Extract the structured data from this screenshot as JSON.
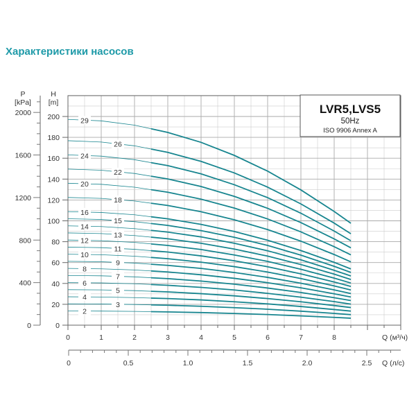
{
  "page_title": "Характеристики насосов",
  "chart_data": {
    "type": "line",
    "title": "LVR5,LVS5",
    "subtitle": [
      "50Hz",
      "ISO 9906 Annex A"
    ],
    "xlabel": "Q (м³/ч)",
    "x2label": "Q (л/с)",
    "ylabel": "H [m]",
    "y2label": "P [kPa]",
    "ylabel_parts": [
      "H",
      "[m]"
    ],
    "y2label_parts": [
      "P",
      "[kPa]"
    ],
    "xlim": [
      0,
      10
    ],
    "ylim": [
      0,
      220
    ],
    "x_ticks": [
      0,
      1,
      2,
      3,
      4,
      5,
      6,
      7,
      8
    ],
    "x2_ticks": [
      "0",
      "0.5",
      "1.0",
      "1.5",
      "2.0",
      "2.5"
    ],
    "y_ticks": [
      0,
      20,
      40,
      60,
      80,
      100,
      120,
      140,
      160,
      180,
      200
    ],
    "y2_ticks": [
      0,
      400,
      800,
      1200,
      1600,
      2000
    ],
    "grid": true,
    "curve_color": "#17858f",
    "title_color": "#1e9aa8",
    "x": [
      0,
      1,
      2,
      3,
      4,
      5,
      6,
      7,
      8,
      8.5
    ],
    "series": [
      {
        "name": "2",
        "values": [
          13.6,
          13.5,
          13.2,
          12.7,
          12.1,
          11.2,
          10.2,
          8.9,
          7.5,
          6.7
        ]
      },
      {
        "name": "3",
        "values": [
          20.4,
          20.3,
          19.8,
          19.1,
          18.1,
          16.8,
          15.3,
          13.4,
          11.3,
          10.1
        ]
      },
      {
        "name": "4",
        "values": [
          27.2,
          27.0,
          26.4,
          25.5,
          24.2,
          22.4,
          20.4,
          17.9,
          15.0,
          13.5
        ]
      },
      {
        "name": "5",
        "values": [
          34.0,
          33.8,
          33.1,
          31.9,
          30.2,
          28.1,
          25.5,
          22.4,
          18.8,
          16.9
        ]
      },
      {
        "name": "6",
        "values": [
          40.8,
          40.5,
          39.7,
          38.2,
          36.2,
          33.7,
          30.5,
          26.8,
          22.6,
          20.2
        ]
      },
      {
        "name": "7",
        "values": [
          47.6,
          47.3,
          46.3,
          44.6,
          42.3,
          39.3,
          35.6,
          31.3,
          26.3,
          23.6
        ]
      },
      {
        "name": "8",
        "values": [
          54.4,
          54.0,
          52.9,
          51.0,
          48.3,
          44.9,
          40.7,
          35.8,
          30.1,
          27.0
        ]
      },
      {
        "name": "9",
        "values": [
          61.2,
          60.8,
          59.5,
          57.3,
          54.4,
          50.5,
          45.8,
          40.2,
          33.8,
          30.3
        ]
      },
      {
        "name": "10",
        "values": [
          68.0,
          67.5,
          66.1,
          63.7,
          60.4,
          56.1,
          50.9,
          44.7,
          37.6,
          33.7
        ]
      },
      {
        "name": "11",
        "values": [
          74.8,
          74.3,
          72.7,
          70.1,
          66.4,
          61.7,
          56.0,
          49.2,
          41.4,
          37.1
        ]
      },
      {
        "name": "12",
        "values": [
          81.6,
          81.0,
          79.3,
          76.4,
          72.5,
          67.3,
          61.1,
          53.6,
          45.1,
          40.4
        ]
      },
      {
        "name": "13",
        "values": [
          88.4,
          87.8,
          85.9,
          82.8,
          78.5,
          72.9,
          66.2,
          58.1,
          48.9,
          43.8
        ]
      },
      {
        "name": "14",
        "values": [
          95.2,
          94.5,
          92.5,
          89.2,
          84.6,
          78.5,
          71.3,
          62.6,
          52.6,
          47.2
        ]
      },
      {
        "name": "15",
        "values": [
          102.0,
          101.3,
          99.2,
          95.6,
          90.6,
          84.2,
          76.4,
          67.1,
          56.4,
          50.6
        ]
      },
      {
        "name": "16",
        "values": [
          108.8,
          108.0,
          105.8,
          101.9,
          96.6,
          89.8,
          81.4,
          71.5,
          60.2,
          53.9
        ]
      },
      {
        "name": "18",
        "values": [
          122.4,
          121.5,
          119.0,
          114.7,
          108.7,
          101.0,
          91.6,
          80.5,
          67.7,
          60.7
        ]
      },
      {
        "name": "20",
        "values": [
          136.0,
          135.0,
          132.2,
          127.4,
          120.8,
          112.2,
          101.8,
          89.4,
          75.2,
          67.4
        ]
      },
      {
        "name": "22",
        "values": [
          149.6,
          148.5,
          145.4,
          140.1,
          132.9,
          123.4,
          112.0,
          98.3,
          82.7,
          74.1
        ]
      },
      {
        "name": "24",
        "values": [
          163.2,
          162.0,
          158.6,
          152.9,
          145.0,
          134.6,
          122.2,
          107.3,
          90.2,
          80.9
        ]
      },
      {
        "name": "26",
        "values": [
          176.8,
          175.5,
          171.9,
          165.6,
          157.0,
          145.9,
          132.3,
          116.2,
          97.8,
          87.6
        ]
      },
      {
        "name": "29",
        "values": [
          197.2,
          195.8,
          191.7,
          184.7,
          175.2,
          162.7,
          147.6,
          129.6,
          109.0,
          97.7
        ]
      }
    ]
  }
}
